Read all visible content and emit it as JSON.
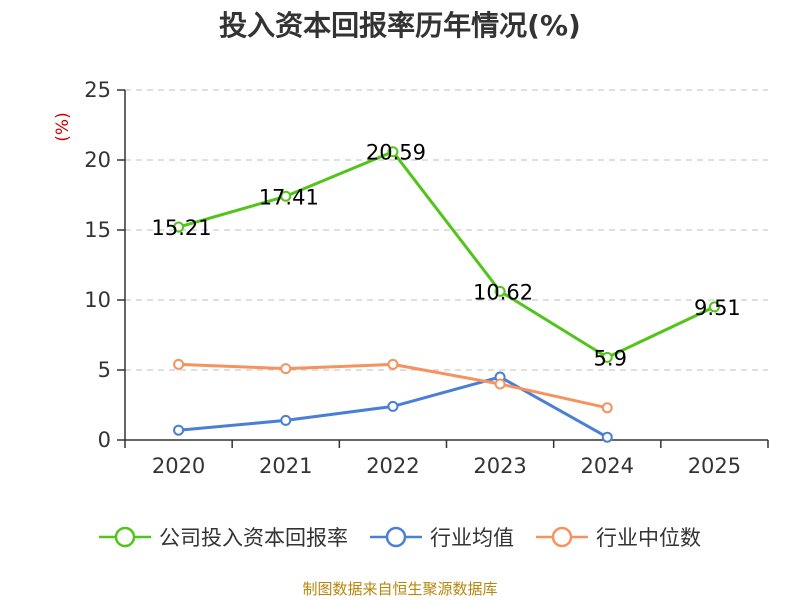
{
  "chart_data": {
    "type": "line",
    "title": "投入资本回报率历年情况(%)",
    "ylabel": "(%)",
    "xlabel": "",
    "categories": [
      "2020",
      "2021",
      "2022",
      "2023",
      "2024",
      "2025"
    ],
    "ylim": [
      0,
      25
    ],
    "yticks": [
      0,
      5,
      10,
      15,
      20,
      25
    ],
    "grid": true,
    "legend_position": "bottom",
    "series": [
      {
        "name": "公司投入资本回报率",
        "color": "#52c41a",
        "values": [
          15.21,
          17.41,
          20.59,
          10.62,
          5.9,
          9.51
        ],
        "labels": [
          "15.21",
          "17.41",
          "20.59",
          "10.62",
          "5.9",
          "9.51"
        ]
      },
      {
        "name": "行业均值",
        "color": "#4a7fd6",
        "values": [
          0.7,
          1.4,
          2.4,
          4.5,
          0.2,
          null
        ]
      },
      {
        "name": "行业中位数",
        "color": "#f5925e",
        "values": [
          5.4,
          5.1,
          5.4,
          4.0,
          2.3,
          null
        ]
      }
    ]
  },
  "source": "制图数据来自恒生聚源数据库"
}
